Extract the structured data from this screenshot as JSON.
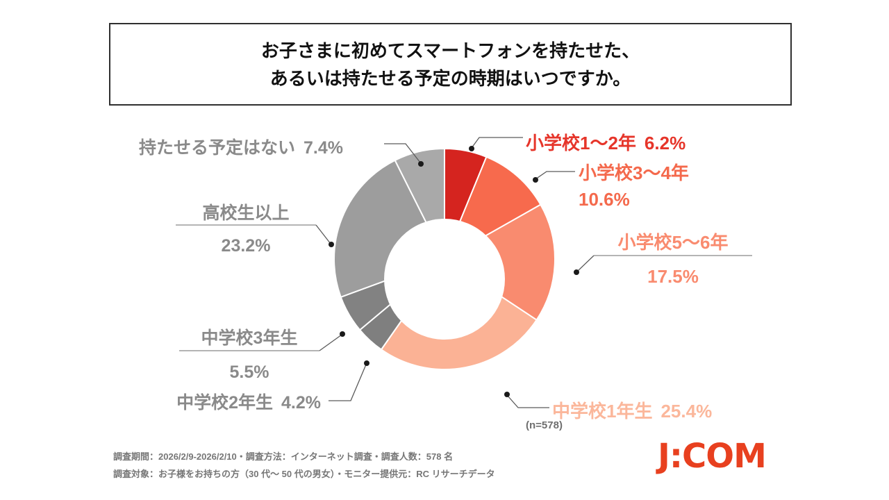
{
  "title": {
    "line1": "お子さまに初めてスマートフォンを持たせた、",
    "line2": "あるいは持たせる予定の時期はいつですか。"
  },
  "chart_data": {
    "type": "pie",
    "donut": true,
    "start_angle_deg": 0,
    "direction": "clockwise",
    "n": 578,
    "n_label": "(n=578)",
    "legend_position": "callout-labels",
    "segments": [
      {
        "label": "小学校1～2年",
        "value": 6.2,
        "pct_text": "6.2%",
        "color": "#d5241f",
        "label_color": "#e6352a"
      },
      {
        "label": "小学校3～4年",
        "value": 10.6,
        "pct_text": "10.6%",
        "color": "#f76a4d",
        "label_color": "#f4694c"
      },
      {
        "label": "小学校5～6年",
        "value": 17.5,
        "pct_text": "17.5%",
        "color": "#f98b6f",
        "label_color": "#f98b6f"
      },
      {
        "label": "中学校1年生",
        "value": 25.4,
        "pct_text": "25.4%",
        "color": "#fbb295",
        "label_color": "#fbb79b"
      },
      {
        "label": "中学校2年生",
        "value": 4.2,
        "pct_text": "4.2%",
        "color": "#7f7f7f",
        "label_color": "#8a8a8a"
      },
      {
        "label": "中学校3年生",
        "value": 5.5,
        "pct_text": "5.5%",
        "color": "#828282",
        "label_color": "#8a8a8a"
      },
      {
        "label": "高校生以上",
        "value": 23.2,
        "pct_text": "23.2%",
        "color": "#9d9d9d",
        "label_color": "#8a8a8a"
      },
      {
        "label": "持たせる予定はない",
        "value": 7.4,
        "pct_text": "7.4%",
        "color": "#a9a9a9",
        "label_color": "#8a8a8a"
      }
    ]
  },
  "footnote": {
    "line1": "調査期間：2026/2/9-2026/2/10・調査方法：インターネット調査・調査人数：578 名",
    "line2": "調査対象：お子様をお持ちの方（30 代～ 50 代の男女）・モニター提供元：RC リサーチデータ"
  },
  "logo": {
    "text": "J:COM",
    "color": "#e8401f"
  }
}
